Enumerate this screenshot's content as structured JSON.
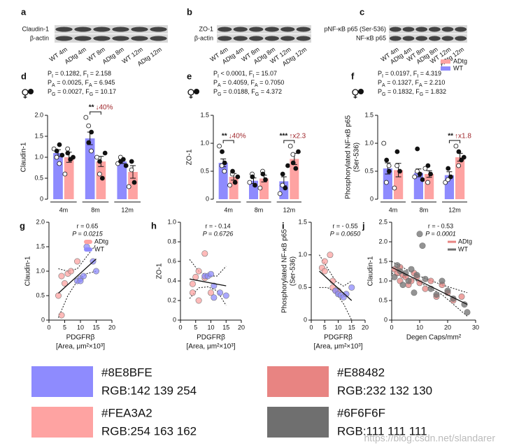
{
  "blots": [
    {
      "letter": "a",
      "labels": [
        "Claudin-1",
        "β-actin"
      ],
      "lanes": [
        "WT 4m",
        "ADtg 4m",
        "WT 8m",
        "ADtg 8m",
        "WT 12m",
        "ADtg 12m"
      ]
    },
    {
      "letter": "b",
      "labels": [
        "ZO-1",
        "β-actin"
      ],
      "lanes": [
        "WT 4m",
        "ADtg 4m",
        "WT 8m",
        "ADtg 8m",
        "WT 12m",
        "ADtg 12m"
      ]
    },
    {
      "letter": "c",
      "labels": [
        "pNF-κB p65 (Ser-536)",
        "NF-κB p65"
      ],
      "lanes": [
        "WT 4m",
        "ADtg 4m",
        "WT 8m",
        "ADtg 8m",
        "WT 12m",
        "ADtg 12m"
      ]
    }
  ],
  "chart_data": [
    {
      "type": "bar",
      "letter": "d",
      "stats": [
        [
          "P",
          "I",
          " = 0.1282, F",
          "I",
          " = 2.158"
        ],
        [
          "P",
          "A",
          " = 0.0025, F",
          "A",
          " = 6.945"
        ],
        [
          "P",
          "G",
          " = 0.0027, F",
          "G",
          " = 10.17"
        ]
      ],
      "ylabel": [
        "Claudin-1"
      ],
      "categories": [
        "4m",
        "8m",
        "12m"
      ],
      "ylim": [
        0,
        2
      ],
      "yticks": [
        0,
        0.5,
        {
          "value": 1,
          "label": "1.0"
        },
        1.5,
        {
          "value": 2,
          "label": "2.0"
        }
      ],
      "series": [
        {
          "name": "WT",
          "color": "#8E8BFE",
          "values": [
            1.1,
            1.45,
            0.9
          ],
          "errors": [
            0.08,
            0.15,
            0.05
          ],
          "points_open": [
            [
              1.2,
              1.0,
              0.85
            ],
            [
              1.95,
              1.75,
              1.15
            ],
            [
              0.85,
              1.0
            ]
          ],
          "points_filled": [
            [
              1.15,
              1.3,
              1.05
            ],
            [
              1.35,
              1.6
            ],
            [
              0.9,
              0.95,
              0.8
            ]
          ]
        },
        {
          "name": "ADtg",
          "color": "#FEA3A2",
          "values": [
            1.0,
            0.9,
            0.65
          ],
          "errors": [
            0.12,
            0.12,
            0.15
          ],
          "points_open": [
            [
              0.6,
              1.2
            ],
            [
              1.0,
              0.6
            ],
            [
              0.3,
              0.7
            ]
          ],
          "points_filled": [
            [
              1.1,
              0.95,
              1.0
            ],
            [
              0.9,
              0.5,
              1.1
            ],
            [
              0.9,
              0.4
            ]
          ]
        }
      ],
      "annotations": [
        {
          "category": "8m",
          "stars": "**",
          "change": "↓40%"
        }
      ]
    },
    {
      "type": "bar",
      "letter": "e",
      "stats": [
        [
          "P",
          "I",
          " < 0.0001, F",
          "I",
          " = 15.07"
        ],
        [
          "P",
          "A",
          " = 0.4059, F",
          "A",
          " = 0.7050"
        ],
        [
          "P",
          "G",
          " = 0.0188, F",
          "G",
          " = 4.372"
        ]
      ],
      "ylabel": [
        "ZO-1"
      ],
      "categories": [
        "4m",
        "8m",
        "12m"
      ],
      "ylim": [
        0,
        1.5
      ],
      "yticks": [
        0,
        0.5,
        {
          "value": 1,
          "label": "1.0"
        },
        1.5
      ],
      "series": [
        {
          "name": "WT",
          "color": "#8E8BFE",
          "values": [
            0.65,
            0.33,
            0.32
          ],
          "errors": [
            0.07,
            0.05,
            0.08
          ],
          "points_open": [
            [
              0.95,
              0.6,
              0.5
            ],
            [
              0.3,
              0.45
            ],
            [
              0.1,
              0.25
            ]
          ],
          "points_filled": [
            [
              0.85,
              0.65
            ],
            [
              0.4,
              0.25
            ],
            [
              0.45,
              0.2,
              0.6
            ]
          ]
        },
        {
          "name": "ADtg",
          "color": "#FEA3A2",
          "values": [
            0.4,
            0.37,
            0.72
          ],
          "errors": [
            0.06,
            0.06,
            0.1
          ],
          "points_open": [
            [
              0.25,
              0.45
            ],
            [
              0.2,
              0.5
            ],
            [
              0.95,
              0.8
            ]
          ],
          "points_filled": [
            [
              0.5,
              0.3,
              0.4
            ],
            [
              0.45,
              0.35
            ],
            [
              0.65,
              0.55,
              0.85
            ]
          ]
        }
      ],
      "annotations": [
        {
          "category": "4m",
          "stars": "**",
          "change": "↓40%"
        },
        {
          "category": "12m",
          "stars": "***",
          "change": "↑x2.3"
        }
      ]
    },
    {
      "type": "bar",
      "letter": "f",
      "stats": [
        [
          "P",
          "I",
          " = 0.0197, F",
          "I",
          " = 4.319"
        ],
        [
          "P",
          "A",
          " = 0.1327, F",
          "A",
          " = 2.210"
        ],
        [
          "P",
          "G",
          " = 0.1832, F",
          "G",
          " = 1.832"
        ]
      ],
      "ylabel": [
        "Phosphorylated NF-κB p65",
        "(Ser-536)"
      ],
      "categories": [
        "4m",
        "8m",
        "12m"
      ],
      "ylim": [
        0,
        1.5
      ],
      "yticks": [
        0,
        0.5,
        {
          "value": 1,
          "label": "1.0"
        },
        1.5
      ],
      "legend": "top-right",
      "series": [
        {
          "name": "WT",
          "color": "#8E8BFE",
          "values": [
            0.55,
            0.47,
            0.43
          ],
          "errors": [
            0.1,
            0.07,
            0.06
          ],
          "points_open": [
            [
              1.0,
              0.3,
              0.6
            ],
            [
              0.4,
              0.5
            ],
            [
              0.3,
              0.35
            ]
          ],
          "points_filled": [
            [
              0.7,
              0.5
            ],
            [
              0.9,
              0.45,
              0.35
            ],
            [
              0.55,
              0.4
            ]
          ]
        },
        {
          "name": "ADtg",
          "color": "#FEA3A2",
          "values": [
            0.52,
            0.45,
            0.75
          ],
          "errors": [
            0.12,
            0.06,
            0.07
          ],
          "points_open": [
            [
              0.2,
              0.6
            ],
            [
              0.55,
              0.3
            ],
            [
              0.95,
              0.6
            ]
          ],
          "points_filled": [
            [
              0.85,
              0.5
            ],
            [
              0.6,
              0.45
            ],
            [
              0.85,
              0.7,
              0.75
            ]
          ]
        }
      ],
      "annotations": [
        {
          "category": "12m",
          "stars": "**",
          "change": "↑x1.8"
        }
      ]
    },
    {
      "type": "scatter",
      "letter": "g",
      "ylabel": [
        "Claudin-1"
      ],
      "xlabel": [
        "PDGFRβ",
        "[Area, μm²×10³]"
      ],
      "stats": [
        "r = 0.65",
        "P = 0.0215"
      ],
      "xlim": [
        0,
        20
      ],
      "xticks": [
        0,
        5,
        10,
        15,
        20
      ],
      "ylim": [
        0,
        2
      ],
      "yticks": [
        0,
        0.5,
        {
          "value": 1,
          "label": "1.0"
        },
        1.5,
        {
          "value": 2,
          "label": "2.0"
        }
      ],
      "legend": "top-right",
      "series": [
        {
          "name": "ADtg",
          "color": "#FEA3A2",
          "x": [
            3,
            4,
            4,
            5,
            6,
            7,
            9
          ],
          "values": [
            0.5,
            0.1,
            0.9,
            0.75,
            0.95,
            1.0,
            1.2
          ]
        },
        {
          "name": "WT",
          "color": "#8E8BFE",
          "x": [
            9,
            10,
            10,
            11,
            12,
            14,
            15
          ],
          "values": [
            0.8,
            0.85,
            0.8,
            0.9,
            1.5,
            1.2,
            1.0
          ]
        }
      ],
      "fit": {
        "x": [
          3,
          15
        ],
        "y": [
          0.55,
          1.25
        ]
      },
      "band": {
        "x": [
          3,
          6,
          9,
          12,
          15
        ],
        "lower": [
          0.05,
          0.5,
          0.8,
          0.95,
          1.0
        ],
        "upper": [
          1.05,
          1.0,
          1.05,
          1.3,
          1.55
        ]
      }
    },
    {
      "type": "scatter",
      "letter": "h",
      "ylabel": [
        "ZO-1"
      ],
      "xlabel": [
        "PDGFRβ",
        "[Area, μm²×10³]"
      ],
      "stats": [
        "r = - 0.14",
        "P = 0.6726"
      ],
      "xlim": [
        0,
        20
      ],
      "xticks": [
        0,
        5,
        10,
        15,
        20
      ],
      "ylim": [
        0,
        1
      ],
      "yticks": [
        0,
        0.2,
        0.4,
        0.6,
        0.8,
        {
          "value": 1,
          "label": "1.0"
        }
      ],
      "series": [
        {
          "name": "ADtg",
          "color": "#FEA3A2",
          "x": [
            4,
            4,
            5,
            6,
            6,
            8,
            8,
            10
          ],
          "values": [
            0.37,
            0.28,
            0.44,
            0.5,
            0.2,
            0.68,
            0.43,
            0.28
          ]
        },
        {
          "name": "WT",
          "color": "#8E8BFE",
          "x": [
            8,
            9,
            10,
            11,
            11,
            13,
            15
          ],
          "values": [
            0.45,
            0.45,
            0.47,
            0.35,
            0.23,
            0.28,
            0.25
          ]
        }
      ],
      "fit": {
        "x": [
          3,
          15
        ],
        "y": [
          0.42,
          0.35
        ]
      },
      "band": {
        "x": [
          3,
          6,
          9,
          12,
          15
        ],
        "lower": [
          0.22,
          0.33,
          0.34,
          0.3,
          0.15
        ],
        "upper": [
          0.62,
          0.5,
          0.45,
          0.45,
          0.55
        ]
      }
    },
    {
      "type": "scatter",
      "letter": "i",
      "ylabel": [
        "Phosphorylated NF-κB p65",
        "(Ser-536)"
      ],
      "xlabel": [
        "PDGFRβ",
        "[Area, μm²×10³]"
      ],
      "stats": [
        "r = - 0.55",
        "P = 0.0650"
      ],
      "xlim": [
        0,
        20
      ],
      "xticks": [
        0,
        5,
        10,
        15,
        20
      ],
      "ylim": [
        0,
        1.5
      ],
      "yticks": [
        0,
        0.5,
        {
          "value": 1,
          "label": "1.0"
        },
        1.5
      ],
      "series": [
        {
          "name": "ADtg",
          "color": "#FEA3A2",
          "x": [
            4,
            5,
            5,
            7,
            8,
            8,
            9,
            10
          ],
          "values": [
            0.8,
            0.75,
            0.9,
            1.0,
            0.5,
            0.6,
            0.45,
            0.45
          ]
        },
        {
          "name": "WT",
          "color": "#8E8BFE",
          "x": [
            9,
            10,
            11,
            12,
            13,
            15
          ],
          "values": [
            0.45,
            0.4,
            0.38,
            0.35,
            0.4,
            0.5
          ]
        }
      ],
      "fit": {
        "x": [
          3,
          15
        ],
        "y": [
          0.75,
          0.3
        ]
      },
      "band": {
        "x": [
          3,
          6,
          9,
          12,
          15
        ],
        "lower": [
          0.5,
          0.5,
          0.42,
          0.25,
          0.0
        ],
        "upper": [
          1.0,
          0.8,
          0.6,
          0.52,
          0.6
        ]
      }
    },
    {
      "type": "scatter",
      "letter": "j",
      "ylabel": [
        "Claudin-1"
      ],
      "xlabel": [
        "Degen Caps/mm²"
      ],
      "stats": [
        "r = - 0.53",
        "P = 0.0001"
      ],
      "xlim": [
        0,
        30
      ],
      "xticks": [
        0,
        10,
        20,
        30
      ],
      "ylim": [
        0,
        2.5
      ],
      "yticks": [
        0,
        0.5,
        {
          "value": 1,
          "label": "1.0"
        },
        1.5,
        {
          "value": 2,
          "label": "2.0"
        },
        2.5
      ],
      "legend": "top-right",
      "legend_marker": "line",
      "series": [
        {
          "name": "ADtg",
          "color": "#E88482",
          "x": [
            1,
            2,
            3,
            3,
            4,
            5,
            6,
            7,
            8,
            9,
            10,
            12,
            14,
            16,
            18,
            20,
            22,
            25
          ],
          "values": [
            1.3,
            1.2,
            1.0,
            1.35,
            1.15,
            1.1,
            0.9,
            1.0,
            1.2,
            1.1,
            0.95,
            0.8,
            1.0,
            0.6,
            0.9,
            0.7,
            0.5,
            0.6
          ]
        },
        {
          "name": "WT",
          "color": "#6F6F6F",
          "x": [
            1,
            2,
            3,
            4,
            5,
            6,
            7,
            8,
            9,
            10,
            11,
            12,
            14,
            16,
            18,
            20,
            22,
            26,
            27
          ],
          "values": [
            1.1,
            1.4,
            1.25,
            0.9,
            1.2,
            1.0,
            1.3,
            0.7,
            1.15,
            2.2,
            1.9,
            1.05,
            0.8,
            0.65,
            1.0,
            0.75,
            0.55,
            0.4,
            0.2
          ]
        }
      ],
      "fit": {
        "x": [
          0,
          27
        ],
        "y": [
          1.35,
          0.4
        ]
      },
      "band": {
        "x": [
          0,
          9,
          18,
          27
        ],
        "lower": [
          1.2,
          1.0,
          0.65,
          0.1
        ],
        "upper": [
          1.5,
          1.15,
          0.9,
          0.7
        ]
      }
    }
  ],
  "swatches": [
    {
      "hex": "#8E8BFE",
      "rgb": "RGB:142 139 254"
    },
    {
      "hex": "#E88482",
      "rgb": "RGB:232 132 130"
    },
    {
      "hex": "#FEA3A2",
      "rgb": "RGB:254 163 162"
    },
    {
      "hex": "#6F6F6F",
      "rgb": "RGB:111 111 111"
    }
  ],
  "watermark": "https://blog.csdn.net/slandarer"
}
